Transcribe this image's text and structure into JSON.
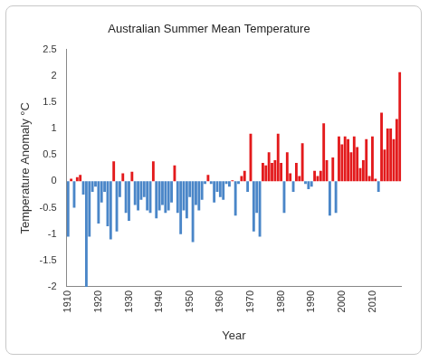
{
  "chart_data": {
    "type": "bar",
    "title": "Australian Summer Mean Temperature",
    "x_label": "Year",
    "y_label": "Temperature Anomaly °C",
    "categories": [
      "1910",
      null,
      null,
      null,
      null,
      null,
      null,
      null,
      null,
      null,
      "1920",
      null,
      null,
      null,
      null,
      null,
      null,
      null,
      null,
      null,
      "1930",
      null,
      null,
      null,
      null,
      null,
      null,
      null,
      null,
      null,
      "1940",
      null,
      null,
      null,
      null,
      null,
      null,
      null,
      null,
      null,
      "1950",
      null,
      null,
      null,
      null,
      null,
      null,
      null,
      null,
      null,
      "1960",
      null,
      null,
      null,
      null,
      null,
      null,
      null,
      null,
      null,
      "1970",
      null,
      null,
      null,
      null,
      null,
      null,
      null,
      null,
      null,
      "1980",
      null,
      null,
      null,
      null,
      null,
      null,
      null,
      null,
      null,
      "1990",
      null,
      null,
      null,
      null,
      null,
      null,
      null,
      null,
      null,
      "2000",
      null,
      null,
      null,
      null,
      null,
      null,
      null,
      null,
      null,
      "2010",
      null,
      null,
      null,
      null,
      null,
      null,
      null,
      null,
      null
    ],
    "values": [
      -1.05,
      0.05,
      -0.5,
      0.08,
      0.12,
      -0.25,
      -2.0,
      -1.05,
      -0.2,
      -0.1,
      -0.8,
      -0.4,
      -0.2,
      -0.85,
      -1.1,
      0.38,
      -0.95,
      -0.3,
      0.15,
      -0.6,
      -0.75,
      0.18,
      -0.45,
      -0.55,
      -0.35,
      -0.3,
      -0.55,
      -0.6,
      0.38,
      -0.7,
      -0.55,
      -0.45,
      -0.6,
      -0.55,
      -0.4,
      0.3,
      -0.6,
      -1.0,
      -0.55,
      -0.7,
      -0.3,
      -1.15,
      -0.45,
      -0.55,
      -0.35,
      -0.05,
      0.12,
      -0.05,
      -0.4,
      -0.2,
      -0.3,
      -0.35,
      -0.05,
      -0.1,
      0.02,
      -0.65,
      -0.05,
      0.1,
      0.2,
      -0.2,
      0.9,
      -0.95,
      -0.6,
      -1.05,
      0.35,
      0.3,
      0.55,
      0.35,
      0.4,
      0.9,
      0.35,
      -0.6,
      0.55,
      0.15,
      -0.2,
      0.35,
      0.1,
      0.72,
      -0.05,
      -0.15,
      -0.1,
      0.2,
      0.1,
      0.2,
      1.1,
      0.4,
      -0.65,
      0.45,
      -0.6,
      0.85,
      0.7,
      0.85,
      0.8,
      0.55,
      0.85,
      0.65,
      0.25,
      0.4,
      0.8,
      0.1,
      0.85,
      0.05,
      -0.2,
      1.3,
      0.6,
      1.0,
      1.0,
      0.8,
      1.18,
      2.07
    ],
    "colors": [
      "#4a86c8",
      "#e31a1c",
      "#4a86c8",
      "#e31a1c",
      "#e31a1c",
      "#4a86c8",
      "#4a86c8",
      "#4a86c8",
      "#4a86c8",
      "#4a86c8",
      "#4a86c8",
      "#4a86c8",
      "#4a86c8",
      "#4a86c8",
      "#4a86c8",
      "#e31a1c",
      "#4a86c8",
      "#4a86c8",
      "#e31a1c",
      "#4a86c8",
      "#4a86c8",
      "#e31a1c",
      "#4a86c8",
      "#4a86c8",
      "#4a86c8",
      "#4a86c8",
      "#4a86c8",
      "#4a86c8",
      "#e31a1c",
      "#4a86c8",
      "#4a86c8",
      "#4a86c8",
      "#4a86c8",
      "#4a86c8",
      "#4a86c8",
      "#e31a1c",
      "#4a86c8",
      "#4a86c8",
      "#4a86c8",
      "#4a86c8",
      "#4a86c8",
      "#4a86c8",
      "#4a86c8",
      "#4a86c8",
      "#4a86c8",
      "#4a86c8",
      "#e31a1c",
      "#4a86c8",
      "#4a86c8",
      "#4a86c8",
      "#4a86c8",
      "#4a86c8",
      "#4a86c8",
      "#4a86c8",
      "#e31a1c",
      "#4a86c8",
      "#4a86c8",
      "#e31a1c",
      "#e31a1c",
      "#4a86c8",
      "#e31a1c",
      "#4a86c8",
      "#4a86c8",
      "#4a86c8",
      "#e31a1c",
      "#e31a1c",
      "#e31a1c",
      "#e31a1c",
      "#e31a1c",
      "#e31a1c",
      "#e31a1c",
      "#4a86c8",
      "#e31a1c",
      "#e31a1c",
      "#4a86c8",
      "#e31a1c",
      "#e31a1c",
      "#e31a1c",
      "#4a86c8",
      "#4a86c8",
      "#4a86c8",
      "#e31a1c",
      "#e31a1c",
      "#e31a1c",
      "#e31a1c",
      "#e31a1c",
      "#4a86c8",
      "#e31a1c",
      "#4a86c8",
      "#e31a1c",
      "#e31a1c",
      "#e31a1c",
      "#e31a1c",
      "#e31a1c",
      "#e31a1c",
      "#e31a1c",
      "#e31a1c",
      "#e31a1c",
      "#e31a1c",
      "#e31a1c",
      "#e31a1c",
      "#e31a1c",
      "#4a86c8",
      "#e31a1c",
      "#e31a1c",
      "#e31a1c",
      "#e31a1c",
      "#e31a1c",
      "#e31a1c",
      "#e31a1c"
    ],
    "ylim": [
      -2,
      2.5
    ],
    "yticks": [
      -2,
      -1.5,
      -1,
      -0.5,
      0,
      0.5,
      1,
      1.5,
      2,
      2.5
    ],
    "grid": false
  }
}
